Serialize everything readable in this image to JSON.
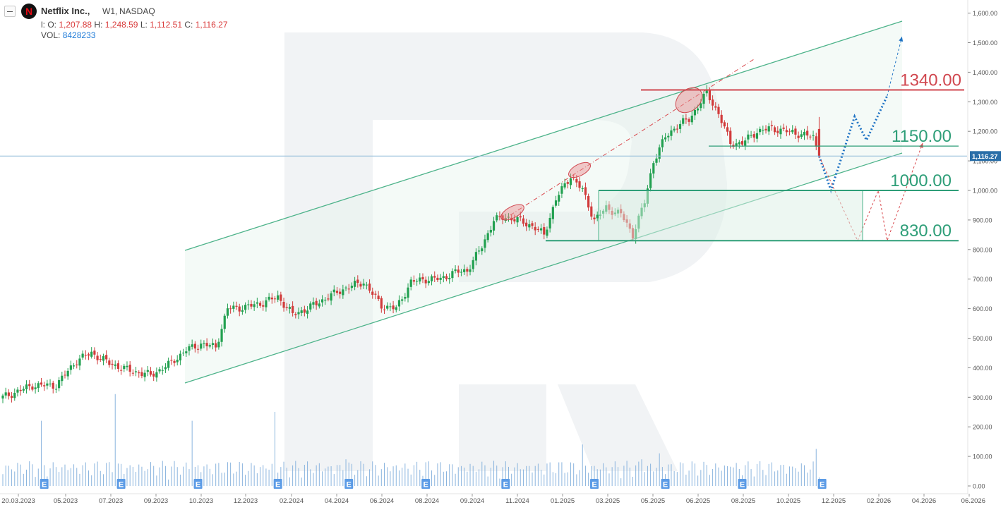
{
  "header": {
    "symbol_name": "Netflix Inc.,",
    "timeframe": "W1,",
    "exchange": "NASDAQ",
    "ohlc": {
      "o_label": "l: O:",
      "o": "1,207.88",
      "h_label": "H:",
      "h": "1,248.59",
      "l_label": "L:",
      "l": "1,112.51",
      "c_label": "C:",
      "c": "1,116.27"
    },
    "volume_label": "VOL:",
    "volume": "8428233"
  },
  "price_axis": {
    "labels": [
      "1,600.00",
      "1,500.00",
      "1,400.00",
      "1,300.00",
      "1,200.00",
      "1,100.00",
      "1,000.00",
      "900.00",
      "800.00",
      "700.00",
      "600.00",
      "500.00",
      "400.00",
      "300.00",
      "200.00",
      "100.00",
      "0.00"
    ],
    "current_price_label": "1,116.27"
  },
  "time_axis": {
    "labels": [
      "20.03.2023",
      "05.2023",
      "07.2023",
      "09.2023",
      "10.2023",
      "12.2023",
      "02.2024",
      "04.2024",
      "06.2024",
      "08.2024",
      "09.2024",
      "11.2024",
      "01.2025",
      "03.2025",
      "05.2025",
      "06.2025",
      "08.2025",
      "10.2025",
      "12.2025",
      "02.2026",
      "04.2026",
      "06.2026"
    ]
  },
  "levels": [
    {
      "name": "resistance-1340",
      "label": "1340.00",
      "value": 1340,
      "color": "#d0474f"
    },
    {
      "name": "level-1150",
      "label": "1150.00",
      "value": 1150,
      "color": "#2e9e78"
    },
    {
      "name": "level-1000",
      "label": "1000.00",
      "value": 1000,
      "color": "#2e9e78"
    },
    {
      "name": "level-830",
      "label": "830.00",
      "value": 830,
      "color": "#2e9e78"
    }
  ],
  "earnings_marker": "E",
  "colors": {
    "up": "#22a050",
    "down": "#d13b3b",
    "channel": "#4db38a",
    "current_price_line": "#8fbad8",
    "volume": "#8ab4de",
    "forecast_blue": "#1f73c4",
    "forecast_red": "#d9484d",
    "earnings_bg": "#5b9be6"
  },
  "chart_data": {
    "type": "candlestick",
    "title": "Netflix Inc., W1, NASDAQ",
    "ylim": [
      0,
      1620
    ],
    "current_price": 1116.27,
    "anchors": [
      [
        0,
        300
      ],
      [
        10,
        340
      ],
      [
        18,
        340
      ],
      [
        25,
        425
      ],
      [
        30,
        450
      ],
      [
        36,
        415
      ],
      [
        43,
        390
      ],
      [
        50,
        375
      ],
      [
        56,
        410
      ],
      [
        62,
        460
      ],
      [
        67,
        480
      ],
      [
        72,
        470
      ],
      [
        76,
        600
      ],
      [
        82,
        605
      ],
      [
        88,
        620
      ],
      [
        93,
        640
      ],
      [
        98,
        580
      ],
      [
        103,
        600
      ],
      [
        110,
        640
      ],
      [
        116,
        670
      ],
      [
        122,
        690
      ],
      [
        128,
        610
      ],
      [
        133,
        600
      ],
      [
        138,
        690
      ],
      [
        143,
        700
      ],
      [
        148,
        700
      ],
      [
        152,
        720
      ],
      [
        157,
        730
      ],
      [
        162,
        810
      ],
      [
        166,
        900
      ],
      [
        170,
        910
      ],
      [
        174,
        900
      ],
      [
        179,
        880
      ],
      [
        183,
        850
      ],
      [
        187,
        970
      ],
      [
        192,
        1050
      ],
      [
        196,
        1000
      ],
      [
        200,
        900
      ],
      [
        204,
        940
      ],
      [
        209,
        920
      ],
      [
        213,
        850
      ],
      [
        217,
        960
      ],
      [
        220,
        1100
      ],
      [
        224,
        1180
      ],
      [
        228,
        1220
      ],
      [
        232,
        1240
      ],
      [
        236,
        1300
      ],
      [
        238,
        1330
      ],
      [
        242,
        1260
      ],
      [
        246,
        1160
      ],
      [
        250,
        1160
      ],
      [
        255,
        1200
      ],
      [
        260,
        1210
      ],
      [
        265,
        1200
      ],
      [
        270,
        1190
      ],
      [
        274,
        1180
      ],
      [
        276,
        1116
      ]
    ],
    "volume_peaks": [
      [
        13,
        220
      ],
      [
        38,
        310
      ],
      [
        64,
        220
      ],
      [
        92,
        250
      ],
      [
        116,
        90
      ],
      [
        143,
        80
      ],
      [
        166,
        85
      ],
      [
        196,
        140
      ],
      [
        216,
        90
      ],
      [
        222,
        110
      ],
      [
        246,
        65
      ],
      [
        275,
        125
      ]
    ],
    "earnings_weeks": [
      14,
      40,
      66,
      93,
      117,
      143,
      170,
      200,
      224,
      250,
      277
    ],
    "forecast_blue": [
      [
        276,
        1116
      ],
      [
        280,
        1000
      ],
      [
        288,
        1250
      ],
      [
        292,
        1170
      ],
      [
        299,
        1320
      ]
    ],
    "forecast_blue_target": [
      [
        299,
        1320
      ],
      [
        304,
        1520
      ]
    ],
    "forecast_red": [
      [
        276,
        1116
      ],
      [
        289,
        830
      ],
      [
        296,
        1000
      ],
      [
        299,
        830
      ],
      [
        311,
        1160
      ]
    ]
  }
}
